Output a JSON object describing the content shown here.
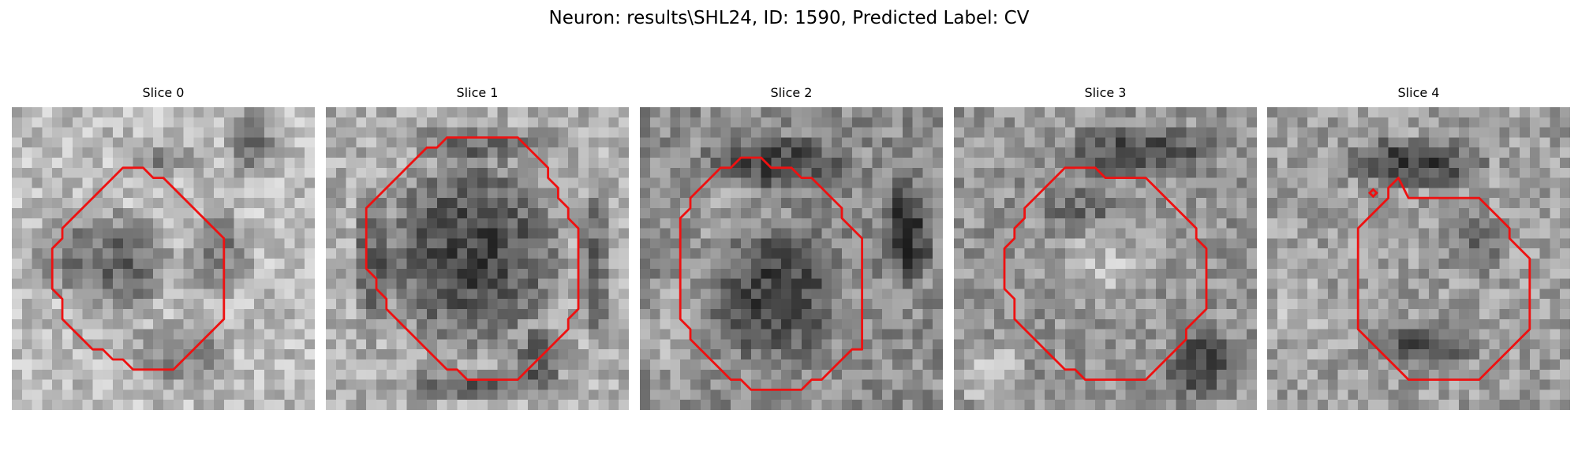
{
  "figure": {
    "title": "Neuron: results\\SHL24, ID: 1590, Predicted Label: CV"
  },
  "colors": {
    "contour": "#ee1111",
    "background": "#ffffff"
  },
  "slices": [
    {
      "title": "Slice 0",
      "contour": [
        [
          5,
          12
        ],
        [
          6,
          11
        ],
        [
          7,
          10
        ],
        [
          8,
          9
        ],
        [
          9,
          8
        ],
        [
          10,
          7
        ],
        [
          11,
          6
        ],
        [
          12,
          6
        ],
        [
          13,
          6
        ],
        [
          14,
          7
        ],
        [
          15,
          7
        ],
        [
          16,
          8
        ],
        [
          17,
          9
        ],
        [
          18,
          10
        ],
        [
          19,
          11
        ],
        [
          20,
          12
        ],
        [
          21,
          13
        ],
        [
          21,
          14
        ],
        [
          21,
          15
        ],
        [
          21,
          16
        ],
        [
          21,
          17
        ],
        [
          21,
          18
        ],
        [
          21,
          19
        ],
        [
          21,
          20
        ],
        [
          21,
          21
        ],
        [
          20,
          22
        ],
        [
          19,
          23
        ],
        [
          18,
          24
        ],
        [
          17,
          25
        ],
        [
          16,
          26
        ],
        [
          15,
          26
        ],
        [
          14,
          26
        ],
        [
          13,
          26
        ],
        [
          12,
          26
        ],
        [
          11,
          25
        ],
        [
          10,
          25
        ],
        [
          9,
          24
        ],
        [
          8,
          24
        ],
        [
          7,
          23
        ],
        [
          6,
          22
        ],
        [
          5,
          21
        ],
        [
          5,
          20
        ],
        [
          5,
          19
        ],
        [
          4,
          18
        ],
        [
          4,
          17
        ],
        [
          4,
          16
        ],
        [
          4,
          15
        ],
        [
          4,
          14
        ],
        [
          5,
          13
        ]
      ],
      "blobs": [
        [
          10,
          15,
          6,
          6,
          0.35
        ],
        [
          20,
          14,
          4,
          5,
          0.28
        ],
        [
          16,
          24,
          6,
          4,
          0.25
        ],
        [
          4,
          14,
          3,
          5,
          0.22
        ],
        [
          23,
          3,
          3,
          4,
          0.3
        ],
        [
          14,
          5,
          5,
          2,
          0.2
        ]
      ],
      "base": 0.74
    },
    {
      "title": "Slice 1",
      "contour": [
        [
          4,
          10
        ],
        [
          5,
          9
        ],
        [
          6,
          8
        ],
        [
          7,
          7
        ],
        [
          8,
          6
        ],
        [
          9,
          5
        ],
        [
          10,
          4
        ],
        [
          11,
          4
        ],
        [
          12,
          3
        ],
        [
          13,
          3
        ],
        [
          14,
          3
        ],
        [
          15,
          3
        ],
        [
          16,
          3
        ],
        [
          17,
          3
        ],
        [
          18,
          3
        ],
        [
          19,
          3
        ],
        [
          20,
          4
        ],
        [
          21,
          5
        ],
        [
          22,
          6
        ],
        [
          22,
          7
        ],
        [
          23,
          8
        ],
        [
          23,
          9
        ],
        [
          24,
          10
        ],
        [
          24,
          11
        ],
        [
          25,
          12
        ],
        [
          25,
          13
        ],
        [
          25,
          14
        ],
        [
          25,
          15
        ],
        [
          25,
          16
        ],
        [
          25,
          17
        ],
        [
          25,
          18
        ],
        [
          25,
          19
        ],
        [
          25,
          20
        ],
        [
          24,
          21
        ],
        [
          24,
          22
        ],
        [
          23,
          23
        ],
        [
          22,
          24
        ],
        [
          21,
          25
        ],
        [
          20,
          26
        ],
        [
          19,
          27
        ],
        [
          18,
          27
        ],
        [
          17,
          27
        ],
        [
          16,
          27
        ],
        [
          15,
          27
        ],
        [
          14,
          27
        ],
        [
          13,
          26
        ],
        [
          12,
          26
        ],
        [
          11,
          25
        ],
        [
          10,
          24
        ],
        [
          9,
          23
        ],
        [
          8,
          22
        ],
        [
          7,
          21
        ],
        [
          6,
          20
        ],
        [
          6,
          19
        ],
        [
          5,
          18
        ],
        [
          5,
          17
        ],
        [
          4,
          16
        ],
        [
          4,
          15
        ],
        [
          4,
          14
        ],
        [
          4,
          13
        ],
        [
          4,
          12
        ],
        [
          4,
          11
        ]
      ],
      "blobs": [
        [
          14,
          14,
          10,
          11,
          0.42,
          -1
        ],
        [
          4,
          15,
          2,
          9,
          0.3
        ],
        [
          26,
          15,
          2,
          9,
          0.28
        ],
        [
          15,
          27,
          9,
          2,
          0.3
        ],
        [
          15,
          3,
          9,
          2,
          0.25
        ],
        [
          21,
          24,
          3,
          3,
          0.35
        ]
      ],
      "base": 0.68
    },
    {
      "title": "Slice 2",
      "contour": [
        [
          4,
          11
        ],
        [
          5,
          10
        ],
        [
          5,
          9
        ],
        [
          6,
          8
        ],
        [
          7,
          7
        ],
        [
          8,
          6
        ],
        [
          9,
          6
        ],
        [
          10,
          5
        ],
        [
          11,
          5
        ],
        [
          12,
          5
        ],
        [
          13,
          6
        ],
        [
          14,
          6
        ],
        [
          15,
          6
        ],
        [
          16,
          7
        ],
        [
          17,
          7
        ],
        [
          18,
          8
        ],
        [
          19,
          9
        ],
        [
          20,
          10
        ],
        [
          20,
          11
        ],
        [
          21,
          12
        ],
        [
          22,
          13
        ],
        [
          22,
          14
        ],
        [
          22,
          15
        ],
        [
          22,
          16
        ],
        [
          22,
          17
        ],
        [
          22,
          18
        ],
        [
          22,
          19
        ],
        [
          22,
          20
        ],
        [
          22,
          21
        ],
        [
          22,
          22
        ],
        [
          22,
          23
        ],
        [
          22,
          24
        ],
        [
          21,
          24
        ],
        [
          20,
          25
        ],
        [
          19,
          26
        ],
        [
          18,
          27
        ],
        [
          17,
          27
        ],
        [
          16,
          28
        ],
        [
          15,
          28
        ],
        [
          14,
          28
        ],
        [
          13,
          28
        ],
        [
          12,
          28
        ],
        [
          11,
          28
        ],
        [
          10,
          27
        ],
        [
          9,
          27
        ],
        [
          8,
          26
        ],
        [
          7,
          25
        ],
        [
          6,
          24
        ],
        [
          5,
          23
        ],
        [
          5,
          22
        ],
        [
          4,
          21
        ],
        [
          4,
          20
        ],
        [
          4,
          19
        ],
        [
          4,
          18
        ],
        [
          4,
          17
        ],
        [
          4,
          16
        ],
        [
          4,
          15
        ],
        [
          4,
          14
        ],
        [
          4,
          13
        ],
        [
          4,
          12
        ]
      ],
      "blobs": [
        [
          13,
          18,
          7,
          8,
          0.3
        ],
        [
          13,
          5,
          8,
          3,
          0.3
        ],
        [
          26,
          12,
          3,
          6,
          0.35
        ],
        [
          3,
          22,
          4,
          6,
          -0.15
        ],
        [
          8,
          10,
          5,
          4,
          -0.08
        ]
      ],
      "base": 0.55
    },
    {
      "title": "Slice 3",
      "contour": [
        [
          5,
          14
        ],
        [
          6,
          13
        ],
        [
          6,
          12
        ],
        [
          7,
          11
        ],
        [
          7,
          10
        ],
        [
          8,
          9
        ],
        [
          9,
          8
        ],
        [
          10,
          7
        ],
        [
          11,
          6
        ],
        [
          12,
          6
        ],
        [
          13,
          6
        ],
        [
          14,
          6
        ],
        [
          15,
          7
        ],
        [
          16,
          7
        ],
        [
          17,
          7
        ],
        [
          18,
          7
        ],
        [
          19,
          7
        ],
        [
          20,
          8
        ],
        [
          21,
          9
        ],
        [
          22,
          10
        ],
        [
          23,
          11
        ],
        [
          24,
          12
        ],
        [
          24,
          13
        ],
        [
          25,
          14
        ],
        [
          25,
          15
        ],
        [
          25,
          16
        ],
        [
          25,
          17
        ],
        [
          25,
          18
        ],
        [
          25,
          19
        ],
        [
          25,
          20
        ],
        [
          24,
          21
        ],
        [
          23,
          22
        ],
        [
          23,
          23
        ],
        [
          22,
          24
        ],
        [
          21,
          25
        ],
        [
          20,
          26
        ],
        [
          19,
          27
        ],
        [
          18,
          27
        ],
        [
          17,
          27
        ],
        [
          16,
          27
        ],
        [
          15,
          27
        ],
        [
          14,
          27
        ],
        [
          13,
          27
        ],
        [
          12,
          26
        ],
        [
          11,
          26
        ],
        [
          10,
          25
        ],
        [
          9,
          24
        ],
        [
          8,
          23
        ],
        [
          7,
          22
        ],
        [
          6,
          21
        ],
        [
          6,
          20
        ],
        [
          6,
          19
        ],
        [
          5,
          18
        ],
        [
          5,
          17
        ],
        [
          5,
          16
        ],
        [
          5,
          15
        ]
      ],
      "blobs": [
        [
          15,
          15,
          6,
          5,
          -0.15
        ],
        [
          18,
          4,
          9,
          3,
          0.3
        ],
        [
          24,
          25,
          4,
          4,
          0.3
        ],
        [
          3,
          26,
          4,
          4,
          -0.2
        ],
        [
          12,
          10,
          5,
          3,
          0.15
        ]
      ],
      "base": 0.58
    },
    {
      "title": "Slice 4",
      "contour": [
        [
          9,
          12
        ],
        [
          10,
          11
        ],
        [
          11,
          10
        ],
        [
          12,
          9
        ],
        [
          12,
          8
        ],
        [
          13,
          7
        ],
        [
          14,
          9
        ],
        [
          15,
          9
        ],
        [
          16,
          9
        ],
        [
          17,
          9
        ],
        [
          18,
          9
        ],
        [
          19,
          9
        ],
        [
          20,
          9
        ],
        [
          21,
          9
        ],
        [
          22,
          10
        ],
        [
          23,
          11
        ],
        [
          24,
          12
        ],
        [
          24,
          13
        ],
        [
          25,
          14
        ],
        [
          26,
          15
        ],
        [
          26,
          16
        ],
        [
          26,
          17
        ],
        [
          26,
          18
        ],
        [
          26,
          19
        ],
        [
          26,
          20
        ],
        [
          26,
          21
        ],
        [
          26,
          22
        ],
        [
          25,
          23
        ],
        [
          24,
          24
        ],
        [
          23,
          25
        ],
        [
          22,
          26
        ],
        [
          21,
          27
        ],
        [
          20,
          27
        ],
        [
          19,
          27
        ],
        [
          18,
          27
        ],
        [
          17,
          27
        ],
        [
          16,
          27
        ],
        [
          15,
          27
        ],
        [
          14,
          27
        ],
        [
          13,
          26
        ],
        [
          12,
          25
        ],
        [
          11,
          24
        ],
        [
          10,
          23
        ],
        [
          9,
          22
        ],
        [
          9,
          21
        ],
        [
          9,
          20
        ],
        [
          9,
          19
        ],
        [
          9,
          18
        ],
        [
          9,
          17
        ],
        [
          9,
          16
        ],
        [
          9,
          15
        ],
        [
          9,
          14
        ],
        [
          9,
          13
        ]
      ],
      "marker": [
        10.5,
        8.5
      ],
      "blobs": [
        [
          14,
          5,
          8,
          3,
          0.38
        ],
        [
          15,
          23,
          7,
          3,
          0.3
        ],
        [
          20,
          13,
          4,
          4,
          0.18
        ],
        [
          3,
          20,
          4,
          5,
          -0.1
        ]
      ],
      "base": 0.62
    }
  ]
}
